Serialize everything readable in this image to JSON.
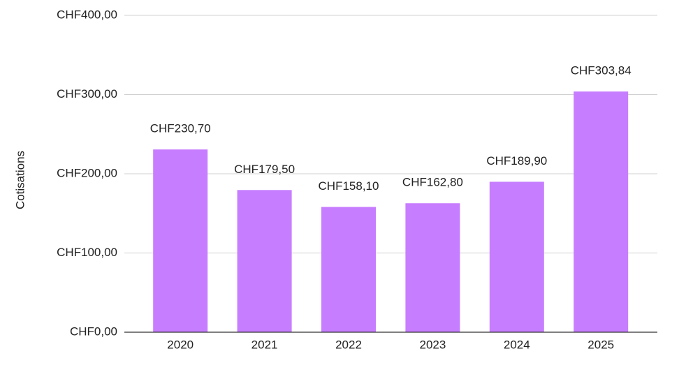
{
  "chart_data": {
    "type": "bar",
    "y_label": "Cotisations",
    "categories": [
      "2020",
      "2021",
      "2022",
      "2023",
      "2024",
      "2025"
    ],
    "values": [
      230.7,
      179.5,
      158.1,
      162.8,
      189.9,
      303.84
    ],
    "value_labels": [
      "CHF230,70",
      "CHF179,50",
      "CHF158,10",
      "CHF162,80",
      "CHF189,90",
      "CHF303,84"
    ],
    "color": "#c77dff",
    "ylim": [
      0,
      400
    ],
    "yticks": [
      {
        "value": 0,
        "label": "CHF0,00"
      },
      {
        "value": 100,
        "label": "CHF100,00"
      },
      {
        "value": 200,
        "label": "CHF200,00"
      },
      {
        "value": 300,
        "label": "CHF300,00"
      },
      {
        "value": 400,
        "label": "CHF400,00"
      }
    ],
    "grid": true
  }
}
